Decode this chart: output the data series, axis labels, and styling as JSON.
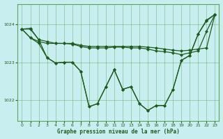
{
  "title": "Graphe pression niveau de la mer (hPa)",
  "background_color": "#c8eef0",
  "grid_color": "#5aa55a",
  "line_color": "#1e5c1e",
  "xlim": [
    -0.5,
    23.5
  ],
  "ylim": [
    1021.45,
    1024.55
  ],
  "yticks": [
    1022,
    1023,
    1024
  ],
  "xticks": [
    0,
    1,
    2,
    3,
    4,
    5,
    6,
    7,
    8,
    9,
    10,
    11,
    12,
    13,
    14,
    15,
    16,
    17,
    18,
    19,
    20,
    21,
    22,
    23
  ],
  "series": [
    {
      "x": [
        0,
        1,
        2,
        3,
        4,
        5,
        6,
        7,
        8,
        9,
        10,
        11,
        12,
        13,
        14,
        15,
        16,
        17,
        18,
        19,
        20,
        21,
        22,
        23
      ],
      "y": [
        1023.88,
        1023.9,
        1023.6,
        1023.55,
        1023.5,
        1023.5,
        1023.5,
        1023.45,
        1023.42,
        1023.42,
        1023.42,
        1023.42,
        1023.42,
        1023.42,
        1023.42,
        1023.4,
        1023.38,
        1023.35,
        1023.32,
        1023.3,
        1023.32,
        1023.35,
        1023.38,
        1024.27
      ]
    },
    {
      "x": [
        0,
        1,
        2,
        3,
        4,
        5,
        6,
        7,
        8,
        9,
        10,
        11,
        12,
        13,
        14,
        15,
        16,
        17,
        18,
        19,
        20,
        21,
        22,
        23
      ],
      "y": [
        1023.88,
        1023.65,
        1023.55,
        1023.5,
        1023.5,
        1023.5,
        1023.48,
        1023.42,
        1023.38,
        1023.38,
        1023.38,
        1023.4,
        1023.4,
        1023.38,
        1023.38,
        1023.35,
        1023.3,
        1023.28,
        1023.25,
        1023.2,
        1023.25,
        1023.3,
        1023.82,
        1024.27
      ]
    },
    {
      "x": [
        0,
        1,
        2,
        3,
        4,
        5,
        6,
        7,
        8,
        9,
        10,
        11,
        12,
        13,
        14,
        15,
        16,
        17,
        18,
        19,
        20,
        21,
        22,
        23
      ],
      "y": [
        1023.88,
        1023.88,
        1023.6,
        1023.12,
        1022.98,
        1023.0,
        1023.0,
        1022.76,
        1021.82,
        1021.9,
        1022.35,
        1022.8,
        1022.28,
        1022.35,
        1021.9,
        1021.72,
        1021.85,
        1021.85,
        1022.28,
        1023.05,
        1023.18,
        1023.75,
        1024.12,
        1024.27
      ]
    },
    {
      "x": [
        0,
        1,
        2,
        3,
        4,
        5,
        6,
        7,
        8,
        9,
        10,
        11,
        12,
        13,
        14,
        15,
        16,
        17,
        18,
        19,
        20,
        21,
        22,
        23
      ],
      "y": [
        1023.88,
        1023.65,
        1023.5,
        1023.12,
        1022.98,
        1023.0,
        1023.0,
        1022.76,
        1021.82,
        1021.9,
        1022.35,
        1022.8,
        1022.28,
        1022.35,
        1021.9,
        1021.72,
        1021.85,
        1021.85,
        1022.28,
        1023.05,
        1023.18,
        1023.75,
        1024.1,
        1024.27
      ]
    }
  ],
  "figsize": [
    3.2,
    2.0
  ],
  "dpi": 100
}
